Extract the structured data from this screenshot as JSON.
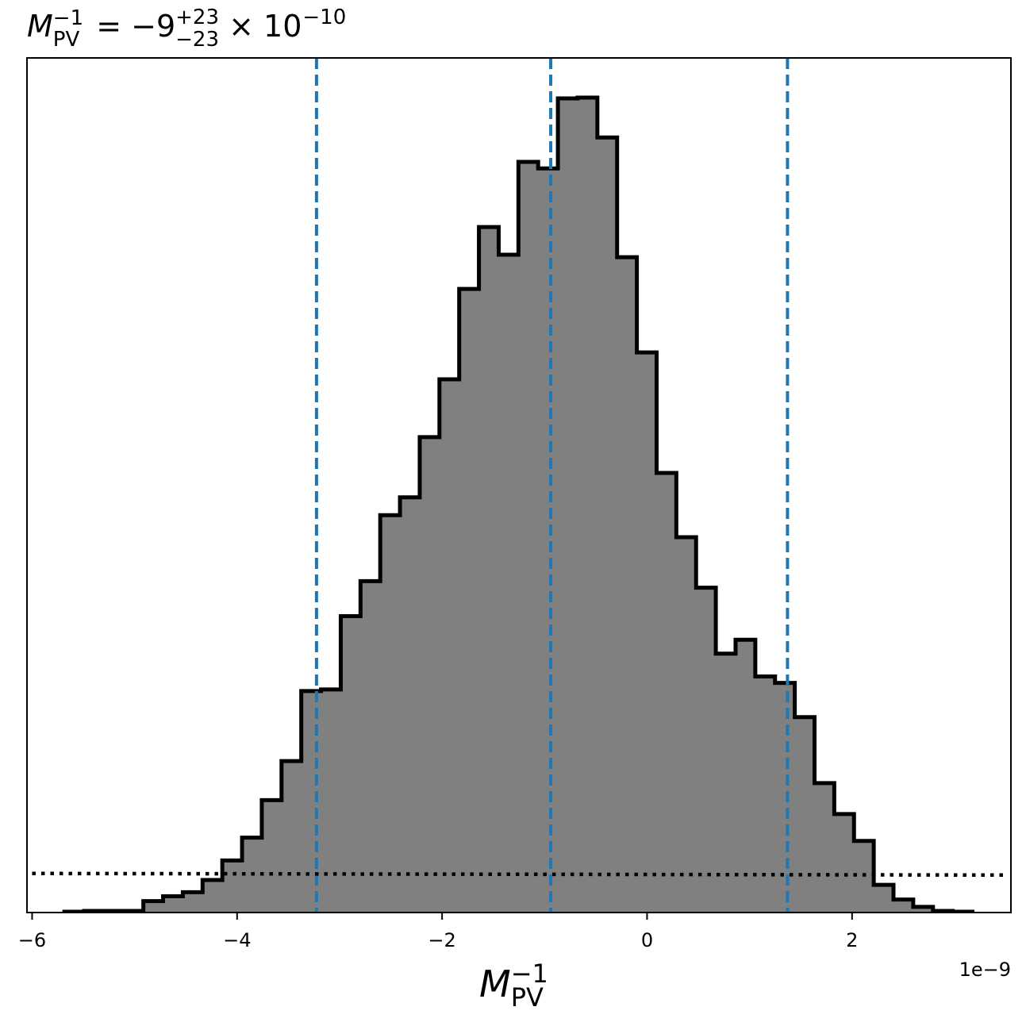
{
  "chart_data": {
    "type": "bar",
    "title": {
      "symbol": "M",
      "sub": "PV",
      "sup": "−1",
      "eq": " = −9",
      "err_plus": "+23",
      "err_minus": "−23",
      "times": " × 10",
      "exp": "−10"
    },
    "xlabel": {
      "symbol": "M",
      "sub": "PV",
      "sup": "−1"
    },
    "ylabel": "",
    "x_offset_label": "1e−9",
    "xlim": [
      -6.05e-09,
      3.55e-09
    ],
    "ylim": [
      0,
      1.0
    ],
    "grid": false,
    "xticks": [
      {
        "value": -6e-09,
        "label": "−6"
      },
      {
        "value": -4e-09,
        "label": "−4"
      },
      {
        "value": -2e-09,
        "label": "−2"
      },
      {
        "value": 0,
        "label": "0"
      },
      {
        "value": 2e-09,
        "label": "2"
      }
    ],
    "histogram": {
      "bin_start": -5.685e-09,
      "bin_width": 1.926e-10,
      "values": [
        0.001,
        0.002,
        0.002,
        0.002,
        0.014,
        0.02,
        0.025,
        0.04,
        0.064,
        0.092,
        0.138,
        0.186,
        0.272,
        0.274,
        0.364,
        0.407,
        0.488,
        0.51,
        0.584,
        0.655,
        0.766,
        0.842,
        0.808,
        0.922,
        0.914,
        1.0,
        1.001,
        0.952,
        0.805,
        0.688,
        0.54,
        0.461,
        0.399,
        0.318,
        0.335,
        0.29,
        0.282,
        0.24,
        0.159,
        0.121,
        0.088,
        0.034,
        0.016,
        0.007,
        0.002,
        0.001
      ],
      "fill": "#808080",
      "edge": "#000000"
    },
    "quantile_lines": {
      "values": [
        -3.225e-09,
        -9.4e-10,
        1.37e-09
      ],
      "color": "#1f77b4",
      "style": "dashed"
    },
    "prior_line": {
      "points": [
        [
          -6e-09,
          0.048
        ],
        [
          3.5e-09,
          0.046
        ]
      ],
      "color": "#000000",
      "style": "dotted"
    }
  }
}
